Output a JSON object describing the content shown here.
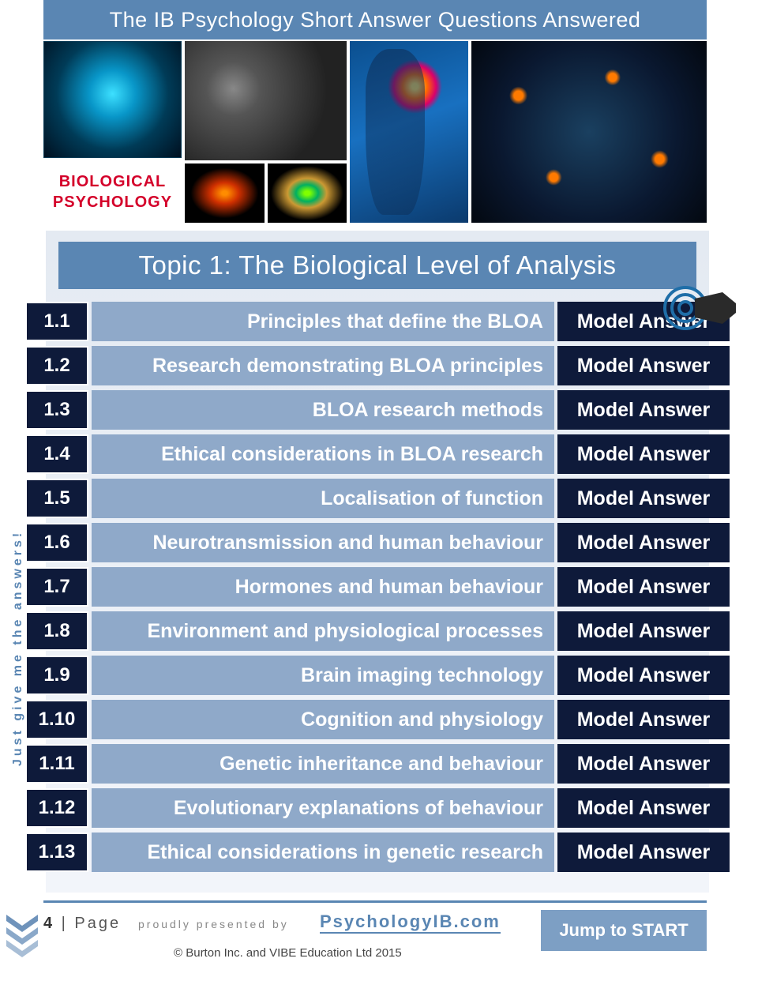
{
  "header": {
    "page_title": "The IB Psychology Short Answer Questions Answered",
    "bio_label_line1": "BIOLOGICAL",
    "bio_label_line2": "PSYCHOLOGY"
  },
  "topic": {
    "title": "Topic 1: The Biological Level of Analysis"
  },
  "rows": [
    {
      "num": "1.1",
      "title": "Principles that define the BLOA",
      "btn": "Model Answer"
    },
    {
      "num": "1.2",
      "title": "Research demonstrating BLOA principles",
      "btn": "Model Answer"
    },
    {
      "num": "1.3",
      "title": "BLOA research methods",
      "btn": "Model Answer"
    },
    {
      "num": "1.4",
      "title": "Ethical considerations in BLOA research",
      "btn": "Model Answer"
    },
    {
      "num": "1.5",
      "title": "Localisation of function",
      "btn": "Model Answer"
    },
    {
      "num": "1.6",
      "title": "Neurotransmission and human behaviour",
      "btn": "Model Answer"
    },
    {
      "num": "1.7",
      "title": "Hormones and human behaviour",
      "btn": "Model Answer"
    },
    {
      "num": "1.8",
      "title": "Environment and physiological processes",
      "btn": "Model Answer"
    },
    {
      "num": "1.9",
      "title": "Brain imaging technology",
      "btn": "Model Answer"
    },
    {
      "num": "1.10",
      "title": "Cognition and physiology",
      "btn": "Model Answer"
    },
    {
      "num": "1.11",
      "title": "Genetic inheritance and behaviour",
      "btn": "Model Answer"
    },
    {
      "num": "1.12",
      "title": "Evolutionary explanations of behaviour",
      "btn": "Model Answer"
    },
    {
      "num": "1.13",
      "title": "Ethical considerations in genetic research",
      "btn": "Model Answer"
    }
  ],
  "side_text": "Just give me the answers!",
  "footer": {
    "page_number": "4",
    "page_word": " | Page",
    "presented_by": "proudly presented by",
    "site": "PsychologyIB.com",
    "copyright": "© Burton Inc. and VIBE Education Ltd 2015",
    "jump_label": "Jump to START"
  },
  "colors": {
    "primary": "#5a86b3",
    "row_title_bg": "#8fa9c9",
    "dark_navy": "#0e1a3a",
    "jump_bg": "#7d9fc4"
  }
}
